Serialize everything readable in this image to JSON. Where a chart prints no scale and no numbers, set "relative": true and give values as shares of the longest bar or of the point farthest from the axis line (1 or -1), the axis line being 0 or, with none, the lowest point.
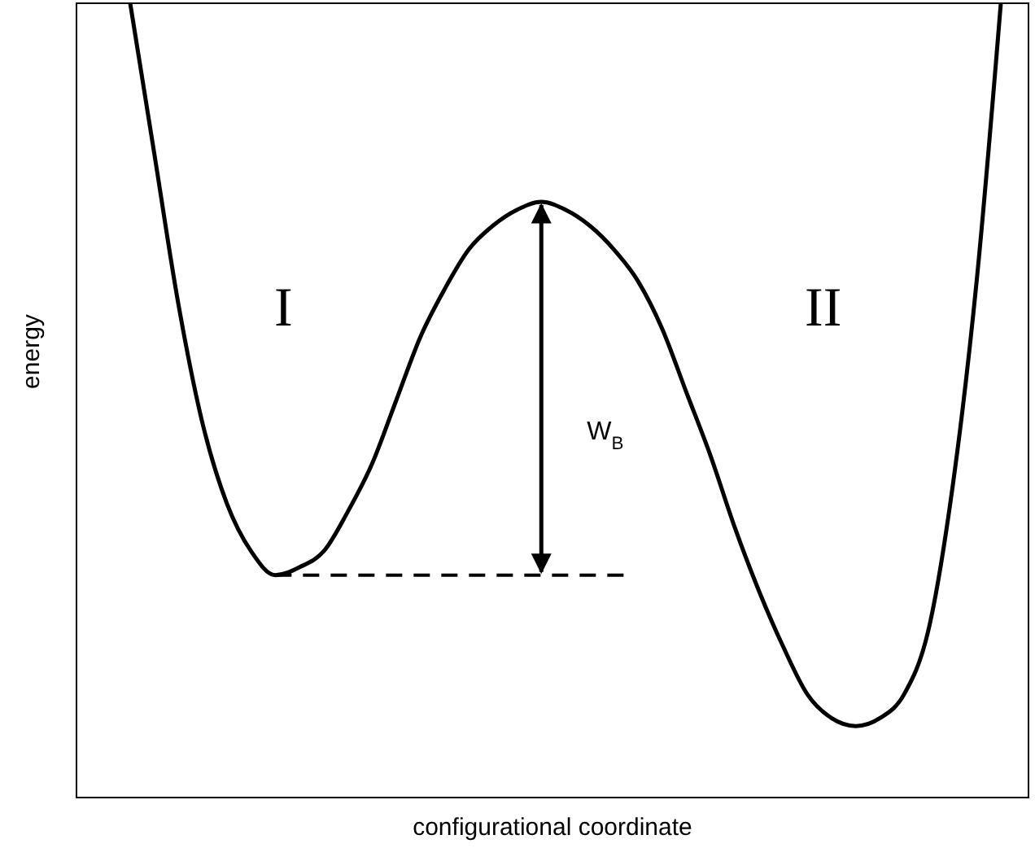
{
  "chart_data": {
    "type": "line",
    "relative": true,
    "xlabel": "configurational coordinate",
    "ylabel": "energy",
    "marker": "none",
    "line_style": "solid",
    "categories": [
      null,
      null,
      null,
      null,
      null,
      null,
      null,
      null,
      null,
      null,
      null,
      null,
      null,
      null,
      null,
      null,
      null,
      null,
      null,
      null,
      null,
      null,
      null,
      null,
      null,
      null,
      null,
      null,
      null,
      null,
      null,
      null,
      null,
      null,
      null,
      null,
      null
    ],
    "series": [
      {
        "color": "#000000",
        "values": [
          1.0,
          0.81,
          0.62,
          0.47,
          0.37,
          0.31,
          0.28,
          0.29,
          0.31,
          0.36,
          0.42,
          0.5,
          0.58,
          0.64,
          0.69,
          0.72,
          0.74,
          0.75,
          0.74,
          0.72,
          0.69,
          0.65,
          0.59,
          0.51,
          0.43,
          0.34,
          0.26,
          0.19,
          0.13,
          0.1,
          0.09,
          0.1,
          0.13,
          0.21,
          0.39,
          0.65,
          1.0
        ]
      }
    ],
    "ref_lines": [
      {
        "axis": "y",
        "value": 0.28,
        "color": "#000000",
        "line_style": "dashed"
      }
    ],
    "annotations": [
      "I",
      "II",
      "W$_{B}$"
    ]
  }
}
